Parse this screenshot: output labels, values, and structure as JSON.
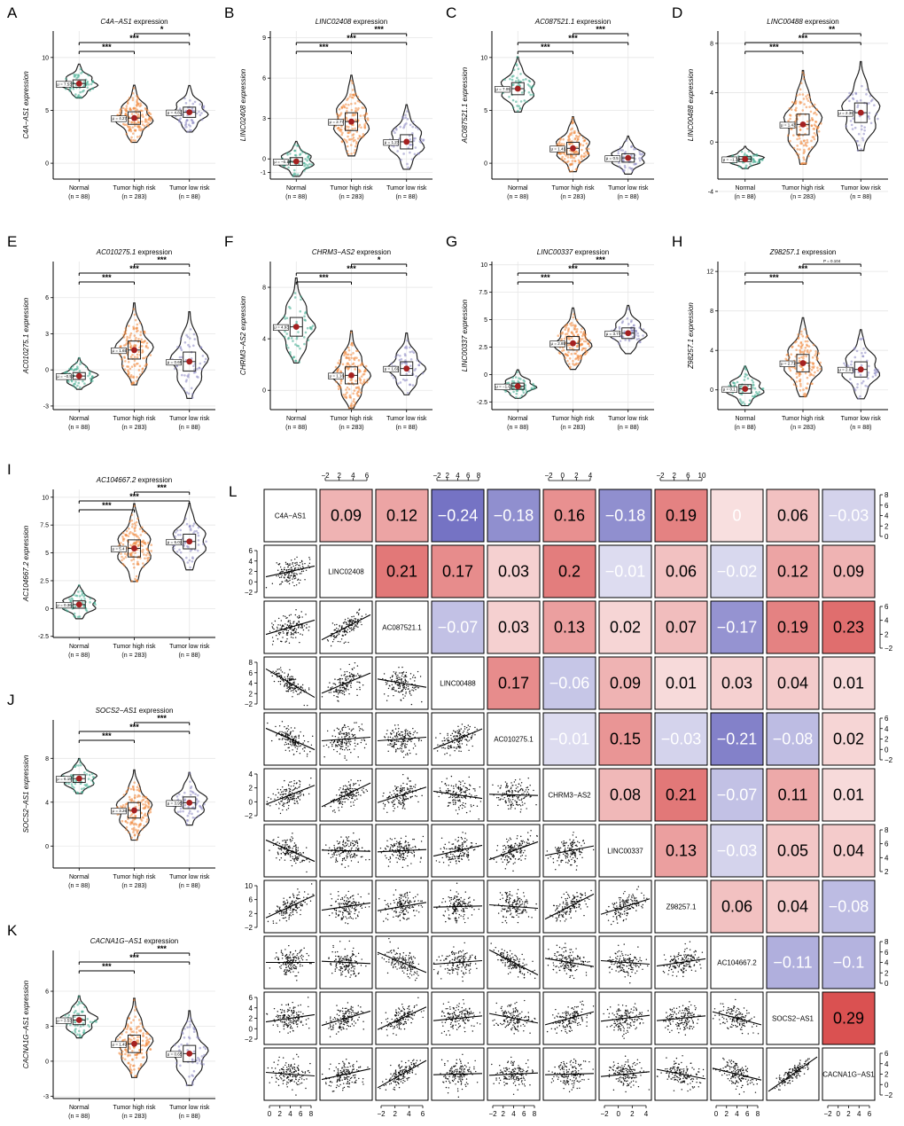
{
  "figure": {
    "panel_letters": [
      "A",
      "B",
      "C",
      "D",
      "E",
      "F",
      "G",
      "H",
      "I",
      "J",
      "K",
      "L"
    ]
  },
  "groups": {
    "labels": [
      "Normal",
      "Tumor high  risk",
      "Tumor low  risk"
    ],
    "counts": [
      "(n = 88)",
      "(n = 283)",
      "(n = 88)"
    ]
  },
  "colors": {
    "normal": "#3aaa8c",
    "high": "#f0873a",
    "low": "#8a86c2",
    "mean_point": "#a52020",
    "positive": "#d94c4c",
    "negative": "#5a58b8",
    "grid": "#e6e6e6"
  },
  "chart_data": [
    {
      "type": "violin",
      "letter": "A",
      "title_gene": "C4A−AS1",
      "title_suffix": " expression",
      "ylabel": "C4A−AS1 expression",
      "ylim": [
        -1.5,
        12.5
      ],
      "yticks": [
        "0",
        "5",
        "10"
      ],
      "ytick_values": [
        0,
        5,
        10
      ],
      "means": [
        7.53,
        4.27,
        4.82
      ],
      "mean_labels": [
        "μ = 7.53",
        "μ = 4.27",
        "μ = 4.82"
      ],
      "spread": [
        1.6,
        2.7,
        2.2
      ],
      "comparisons": [
        {
          "pair": "Normal vs Tumor high risk",
          "sig": "***"
        },
        {
          "pair": "Normal vs Tumor low risk",
          "sig": "***"
        },
        {
          "pair": "Tumor high vs Tumor low risk",
          "sig": "*"
        }
      ]
    },
    {
      "type": "violin",
      "letter": "B",
      "title_gene": "LINC02408",
      "title_suffix": " expression",
      "ylabel": "LINC02408 expression",
      "ylim": [
        -1.5,
        9.5
      ],
      "yticks": [
        "-1",
        "0",
        "3",
        "6",
        "9"
      ],
      "ytick_values": [
        -1,
        0,
        3,
        6,
        9
      ],
      "means": [
        -0.19,
        2.77,
        1.27
      ],
      "mean_labels": [
        "μ = −0.19",
        "μ = 2.77",
        "μ = 1.27"
      ],
      "spread": [
        1.3,
        3.0,
        2.4
      ],
      "comparisons": [
        {
          "pair": "Normal vs Tumor high risk",
          "sig": "***"
        },
        {
          "pair": "Normal vs Tumor low risk",
          "sig": "***"
        },
        {
          "pair": "Tumor high vs Tumor low risk",
          "sig": "***"
        }
      ]
    },
    {
      "type": "violin",
      "letter": "C",
      "title_gene": "AC087521.1",
      "title_suffix": " expression",
      "ylabel": "AC087521.1 expression",
      "ylim": [
        -1.5,
        12.5
      ],
      "yticks": [
        "0",
        "5",
        "10"
      ],
      "ytick_values": [
        0,
        5,
        10
      ],
      "means": [
        7.05,
        1.41,
        0.5
      ],
      "mean_labels": [
        "μ = 7.05",
        "μ = 1.41",
        "μ = 0.5"
      ],
      "spread": [
        2.6,
        2.6,
        1.8
      ],
      "comparisons": [
        {
          "pair": "Normal vs Tumor high risk",
          "sig": "***"
        },
        {
          "pair": "Normal vs Tumor low risk",
          "sig": "***"
        },
        {
          "pair": "Tumor high vs Tumor low risk",
          "sig": "***"
        }
      ]
    },
    {
      "type": "violin",
      "letter": "D",
      "title_gene": "LINC00488",
      "title_suffix": " expression",
      "ylabel": "LINC00488 expression",
      "ylim": [
        -3,
        9
      ],
      "yticks": [
        "-4",
        "0",
        "4",
        "8"
      ],
      "ytick_values": [
        -4,
        0,
        4,
        8
      ],
      "means": [
        -1.38,
        1.43,
        2.38
      ],
      "mean_labels": [
        "μ = −1.38",
        "μ = 1.43",
        "μ = 2.38"
      ],
      "spread": [
        0.9,
        3.8,
        3.6
      ],
      "comparisons": [
        {
          "pair": "Normal vs Tumor high risk",
          "sig": "***"
        },
        {
          "pair": "Normal vs Tumor low risk",
          "sig": "***"
        },
        {
          "pair": "Tumor high vs Tumor low risk",
          "sig": "**"
        }
      ]
    },
    {
      "type": "violin",
      "letter": "E",
      "title_gene": "AC010275.1",
      "title_suffix": " expression",
      "ylabel": "AC010275.1 expression",
      "ylim": [
        -3.3,
        9
      ],
      "yticks": [
        "-3",
        "0",
        "3",
        "6"
      ],
      "ytick_values": [
        -3,
        0,
        3,
        6
      ],
      "means": [
        -0.51,
        1.65,
        0.69
      ],
      "mean_labels": [
        "μ = −0.51",
        "μ = 1.65",
        "μ = 0.69"
      ],
      "spread": [
        1.3,
        3.4,
        3.6
      ],
      "comparisons": [
        {
          "pair": "Normal vs Tumor high risk",
          "sig": "***"
        },
        {
          "pair": "Normal vs Tumor low risk",
          "sig": "***"
        },
        {
          "pair": "Tumor high vs Tumor low risk",
          "sig": "***"
        }
      ]
    },
    {
      "type": "violin",
      "letter": "F",
      "title_gene": "CHRM3−AS2",
      "title_suffix": " expression",
      "ylabel": "CHRM3−AS2 expression",
      "ylim": [
        -1.5,
        10
      ],
      "yticks": [
        "0",
        "4",
        "8"
      ],
      "ytick_values": [
        0,
        4,
        8
      ],
      "means": [
        4.93,
        1.16,
        1.69
      ],
      "mean_labels": [
        "μ = 4.93",
        "μ = 1.16",
        "μ = 1.69"
      ],
      "spread": [
        3.3,
        3.0,
        2.4
      ],
      "comparisons": [
        {
          "pair": "Normal vs Tumor high risk",
          "sig": "***"
        },
        {
          "pair": "Normal vs Tumor low risk",
          "sig": "***"
        },
        {
          "pair": "Tumor high vs Tumor low risk",
          "sig": "*"
        }
      ]
    },
    {
      "type": "violin",
      "letter": "G",
      "title_gene": "LINC00337",
      "title_suffix": " expression",
      "ylabel": "LINC00337 expression",
      "ylim": [
        -3.2,
        10.3
      ],
      "yticks": [
        "-2.5",
        "0",
        "2.5",
        "5",
        "7.5",
        "10"
      ],
      "ytick_values": [
        -2.5,
        0,
        2.5,
        5,
        7.5,
        10
      ],
      "means": [
        -1.07,
        2.85,
        3.77
      ],
      "mean_labels": [
        "μ = −1.07",
        "μ = 2.85",
        "μ = 3.77"
      ],
      "spread": [
        1.3,
        2.8,
        2.2
      ],
      "comparisons": [
        {
          "pair": "Normal vs Tumor high risk",
          "sig": "***"
        },
        {
          "pair": "Normal vs Tumor low risk",
          "sig": "***"
        },
        {
          "pair": "Tumor high vs Tumor low risk",
          "sig": "***"
        }
      ]
    },
    {
      "type": "violin",
      "letter": "H",
      "title_gene": "Z98257.1",
      "title_suffix": " expression",
      "ylabel": "Z98257.1 expression",
      "ylim": [
        -2,
        13
      ],
      "yticks": [
        "0",
        "4",
        "8",
        "12"
      ],
      "ytick_values": [
        0,
        4,
        8,
        12
      ],
      "means": [
        0.1,
        2.71,
        2.07
      ],
      "mean_labels": [
        "μ = 0.1",
        "μ = 2.71",
        "μ = 2.07"
      ],
      "spread": [
        2.0,
        4.0,
        3.5
      ],
      "comparisons": [
        {
          "pair": "Normal vs Tumor high risk",
          "sig": "***"
        },
        {
          "pair": "Normal vs Tumor low risk",
          "sig": "***"
        },
        {
          "pair": "Tumor high vs Tumor low risk",
          "sig": "P = 0.104"
        }
      ]
    },
    {
      "type": "violin",
      "letter": "I",
      "title_gene": "AC104667.2",
      "title_suffix": " expression",
      "ylabel": "AC104667.2 expression",
      "ylim": [
        -2.6,
        10.7
      ],
      "yticks": [
        "-2.5",
        "0",
        "2.5",
        "5",
        "7.5",
        "10"
      ],
      "ytick_values": [
        -2.5,
        0,
        2.5,
        5,
        7.5,
        10
      ],
      "means": [
        0.36,
        5.4,
        6.02
      ],
      "mean_labels": [
        "μ = 0.36",
        "μ = 5.4",
        "μ = 6.02"
      ],
      "spread": [
        1.5,
        3.5,
        3.0
      ],
      "comparisons": [
        {
          "pair": "Normal vs Tumor high risk",
          "sig": "***"
        },
        {
          "pair": "Normal vs Tumor low risk",
          "sig": "***"
        },
        {
          "pair": "Tumor high vs Tumor low risk",
          "sig": "***"
        }
      ]
    },
    {
      "type": "violin",
      "letter": "J",
      "title_gene": "SOCS2−AS1",
      "title_suffix": " expression",
      "ylabel": "SOCS2−AS1 expression",
      "ylim": [
        -2,
        11.5
      ],
      "yticks": [
        "0",
        "4",
        "8"
      ],
      "ytick_values": [
        0,
        4,
        8
      ],
      "means": [
        6.15,
        3.26,
        3.95
      ],
      "mean_labels": [
        "μ = 6.15",
        "μ = 3.26",
        "μ = 3.95"
      ],
      "spread": [
        1.6,
        3.2,
        2.4
      ],
      "comparisons": [
        {
          "pair": "Normal vs Tumor high risk",
          "sig": "***"
        },
        {
          "pair": "Normal vs Tumor low risk",
          "sig": "***"
        },
        {
          "pair": "Tumor high vs Tumor low risk",
          "sig": "***"
        }
      ]
    },
    {
      "type": "violin",
      "letter": "K",
      "title_gene": "CACNA1G−AS1",
      "title_suffix": " expression",
      "ylabel": "CACNA1G−AS1 expression",
      "ylim": [
        -3.2,
        9.5
      ],
      "yticks": [
        "-3",
        "0",
        "3",
        "6"
      ],
      "ytick_values": [
        -3,
        0,
        3,
        6
      ],
      "means": [
        3.53,
        1.49,
        0.65
      ],
      "mean_labels": [
        "μ = 3.53",
        "μ = 1.49",
        "μ = 0.65"
      ],
      "spread": [
        1.8,
        3.4,
        3.2
      ],
      "comparisons": [
        {
          "pair": "Normal vs Tumor high risk",
          "sig": "***"
        },
        {
          "pair": "Normal vs Tumor low risk",
          "sig": "***"
        },
        {
          "pair": "Tumor high vs Tumor low risk",
          "sig": "***"
        }
      ]
    },
    {
      "type": "heatmap",
      "letter": "L",
      "title": "Correlation matrix (pairs plot)",
      "genes": [
        "C4A−AS1",
        "LINC02408",
        "AC087521.1",
        "LINC00488",
        "AC010275.1",
        "CHRM3−AS2",
        "LINC00337",
        "Z98257.1",
        "AC104667.2",
        "SOCS2−AS1",
        "CACNA1G−AS1"
      ],
      "upper": [
        [
          "0.09",
          "0.12",
          "−0.24",
          "−0.18",
          "0.16",
          "−0.18",
          "0.19",
          "0",
          "0.06",
          "−0.03"
        ],
        [
          "0.21",
          "0.17",
          "0.03",
          "0.2",
          "−0.01",
          "0.06",
          "−0.02",
          "0.12",
          "0.09"
        ],
        [
          "−0.07",
          "0.03",
          "0.13",
          "0.02",
          "0.07",
          "−0.17",
          "0.19",
          "0.23"
        ],
        [
          "0.17",
          "−0.06",
          "0.09",
          "0.01",
          "0.03",
          "0.04",
          "0.01"
        ],
        [
          "−0.01",
          "0.15",
          "−0.03",
          "−0.21",
          "−0.08",
          "0.02"
        ],
        [
          "0.08",
          "0.21",
          "−0.07",
          "0.11",
          "0.01"
        ],
        [
          "0.13",
          "−0.03",
          "0.05",
          "0.04"
        ],
        [
          "0.06",
          "0.04",
          "−0.08"
        ],
        [
          "−0.11",
          "−0.1"
        ],
        [
          "0.29"
        ]
      ],
      "upper_values": [
        [
          0.09,
          0.12,
          -0.24,
          -0.18,
          0.16,
          -0.18,
          0.19,
          0,
          0.06,
          -0.03
        ],
        [
          0.21,
          0.17,
          0.03,
          0.2,
          -0.01,
          0.06,
          -0.02,
          0.12,
          0.09
        ],
        [
          -0.07,
          0.03,
          0.13,
          0.02,
          0.07,
          -0.17,
          0.19,
          0.23
        ],
        [
          0.17,
          -0.06,
          0.09,
          0.01,
          0.03,
          0.04,
          0.01
        ],
        [
          -0.01,
          0.15,
          -0.03,
          -0.21,
          -0.08,
          0.02
        ],
        [
          0.08,
          0.21,
          -0.07,
          0.11,
          0.01
        ],
        [
          0.13,
          -0.03,
          0.05,
          0.04
        ],
        [
          0.06,
          0.04,
          -0.08
        ],
        [
          -0.11,
          -0.1
        ],
        [
          0.29
        ]
      ],
      "top_axes": [
        {
          "col": 1,
          "ticks": [
            "−2",
            "2",
            "4",
            "6"
          ]
        },
        {
          "col": 3,
          "ticks": [
            "−2",
            "2",
            "4",
            "6",
            "8"
          ]
        },
        {
          "col": 5,
          "ticks": [
            "−2",
            "0",
            "2",
            "4"
          ]
        },
        {
          "col": 7,
          "ticks": [
            "−2",
            "2",
            "6",
            "10"
          ]
        }
      ],
      "bottom_axes": [
        {
          "col": 0,
          "ticks": [
            "0",
            "2",
            "4",
            "6",
            "8"
          ]
        },
        {
          "col": 2,
          "ticks": [
            "−2",
            "2",
            "4",
            "6"
          ]
        },
        {
          "col": 4,
          "ticks": [
            "−2",
            "2",
            "4",
            "6",
            "8"
          ]
        },
        {
          "col": 6,
          "ticks": [
            "−2",
            "0",
            "2",
            "4"
          ]
        },
        {
          "col": 8,
          "ticks": [
            "0",
            "2",
            "4",
            "6",
            "8"
          ]
        },
        {
          "col": 10,
          "ticks": [
            "−2",
            "0",
            "2",
            "4",
            "6"
          ]
        }
      ],
      "left_axes": [
        {
          "row": 1,
          "ticks": [
            "6",
            "4",
            "2",
            "0",
            "−2"
          ]
        },
        {
          "row": 3,
          "ticks": [
            "8",
            "6",
            "4",
            "2",
            "−2"
          ]
        },
        {
          "row": 5,
          "ticks": [
            "4",
            "2",
            "0",
            "−2"
          ]
        },
        {
          "row": 7,
          "ticks": [
            "10",
            "6",
            "2",
            "−2"
          ]
        },
        {
          "row": 9,
          "ticks": [
            "6",
            "4",
            "2",
            "0",
            "−2"
          ]
        }
      ],
      "right_axes": [
        {
          "row": 0,
          "ticks": [
            "8",
            "6",
            "4",
            "2",
            "0"
          ]
        },
        {
          "row": 2,
          "ticks": [
            "6",
            "4",
            "2",
            "−2"
          ]
        },
        {
          "row": 4,
          "ticks": [
            "6",
            "4",
            "2",
            "0",
            "−2"
          ]
        },
        {
          "row": 6,
          "ticks": [
            "8",
            "6",
            "4",
            "2"
          ]
        },
        {
          "row": 8,
          "ticks": [
            "8",
            "6",
            "4",
            "2",
            "0"
          ]
        },
        {
          "row": 10,
          "ticks": [
            "6",
            "4",
            "2",
            "0",
            "−2"
          ]
        }
      ]
    }
  ]
}
